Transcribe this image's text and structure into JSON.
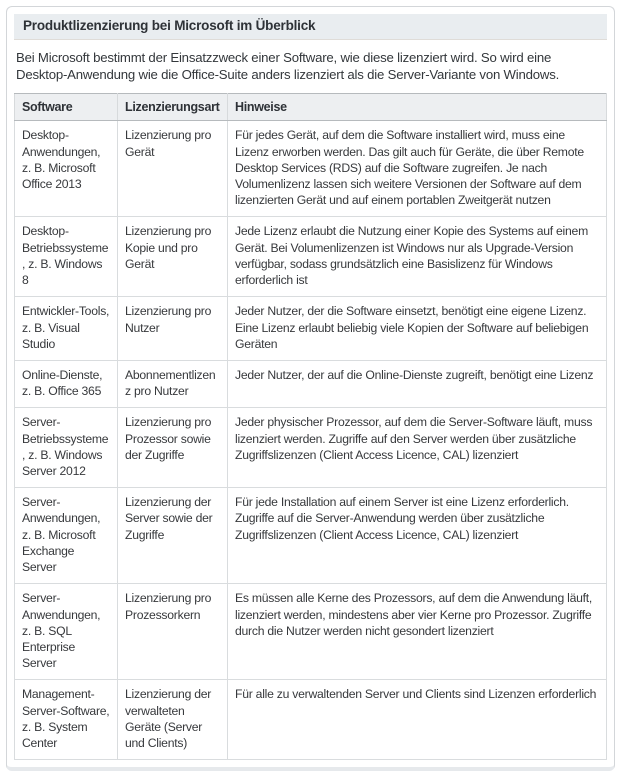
{
  "colors": {
    "panel_border": "#d3d6d9",
    "panel_bottom_edge": "#e6e9ec",
    "titlebar_bg": "#e9edf0",
    "table_header_bg": "#edeff1",
    "table_border": "#d9dcde",
    "table_header_border": "#b6babd",
    "text": "#33373b"
  },
  "panel": {
    "title": "Produktlizenzierung bei Microsoft im Überblick",
    "intro": "Bei Microsoft bestimmt der Einsatzzweck einer Software, wie diese lizenziert wird. So wird eine Desktop-Anwendung wie die Office-Suite anders lizenziert als die Server-Variante von Windows."
  },
  "table": {
    "columns": [
      "Software",
      "Lizenzierungsart",
      "Hinweise"
    ],
    "rows": [
      {
        "software": "Desktop-Anwendungen, z. B. Microsoft Office 2013",
        "lizenzierungsart": "Lizenzierung pro Gerät",
        "hinweise": "Für jedes Gerät, auf dem die Software installiert wird, muss eine Lizenz erworben werden. Das gilt auch für Geräte, die über Remote Desktop Services (RDS) auf die Software zugreifen. Je nach Volumenlizenz lassen sich weitere Versionen der Software auf dem lizenzierten Gerät und auf einem portablen Zweitgerät nutzen"
      },
      {
        "software": "Desktop-Betriebssysteme, z. B. Windows 8",
        "lizenzierungsart": "Lizenzierung pro Kopie und pro Gerät",
        "hinweise": "Jede Lizenz erlaubt die Nutzung einer Kopie des Systems auf einem Gerät. Bei Volumenlizenzen ist Windows nur als Upgrade-Version verfügbar, sodass grundsätzlich eine Basislizenz für Windows erforderlich ist"
      },
      {
        "software": "Entwickler-Tools, z. B. Visual Studio",
        "lizenzierungsart": "Lizenzierung pro Nutzer",
        "hinweise": "Jeder Nutzer, der die Software einsetzt, benötigt eine eigene Lizenz. Eine Lizenz erlaubt beliebig viele Kopien der Software auf beliebigen Geräten"
      },
      {
        "software": "Online-Dienste, z. B. Office 365",
        "lizenzierungsart": "Abonnementlizenz pro Nutzer",
        "hinweise": "Jeder Nutzer, der auf die Online-Dienste zugreift, benötigt eine Lizenz"
      },
      {
        "software": "Server-Betriebssysteme, z. B. Windows Server 2012",
        "lizenzierungsart": "Lizenzierung pro Prozessor sowie der Zugriffe",
        "hinweise": "Jeder physischer Prozessor, auf dem die Server-Software läuft, muss lizenziert werden. Zugriffe auf den Server werden über zusätzliche Zugriffslizenzen (Client Access Licence, CAL) lizenziert"
      },
      {
        "software": "Server-Anwendungen, z. B. Microsoft Exchange Server",
        "lizenzierungsart": "Lizenzierung der Server sowie der Zugriffe",
        "hinweise": "Für jede Installation auf einem Server ist eine Lizenz erforderlich. Zugriffe auf die Server-Anwendung werden über zusätzliche Zugriffslizenzen (Client Access Licence, CAL) lizenziert"
      },
      {
        "software": "Server-Anwendungen, z. B. SQL Enterprise Server",
        "lizenzierungsart": "Lizenzierung pro Prozessorkern",
        "hinweise": "Es müssen alle Kerne des Prozessors, auf dem die Anwendung läuft, lizenziert werden, mindestens aber vier Kerne pro Prozessor. Zugriffe durch die Nutzer werden nicht gesondert lizenziert"
      },
      {
        "software": "Management-Server-Software, z. B. System Center",
        "lizenzierungsart": "Lizenzierung der verwalteten Geräte (Server und Clients)",
        "hinweise": "Für alle zu verwaltenden Server und Clients sind Lizenzen erforderlich"
      }
    ]
  }
}
